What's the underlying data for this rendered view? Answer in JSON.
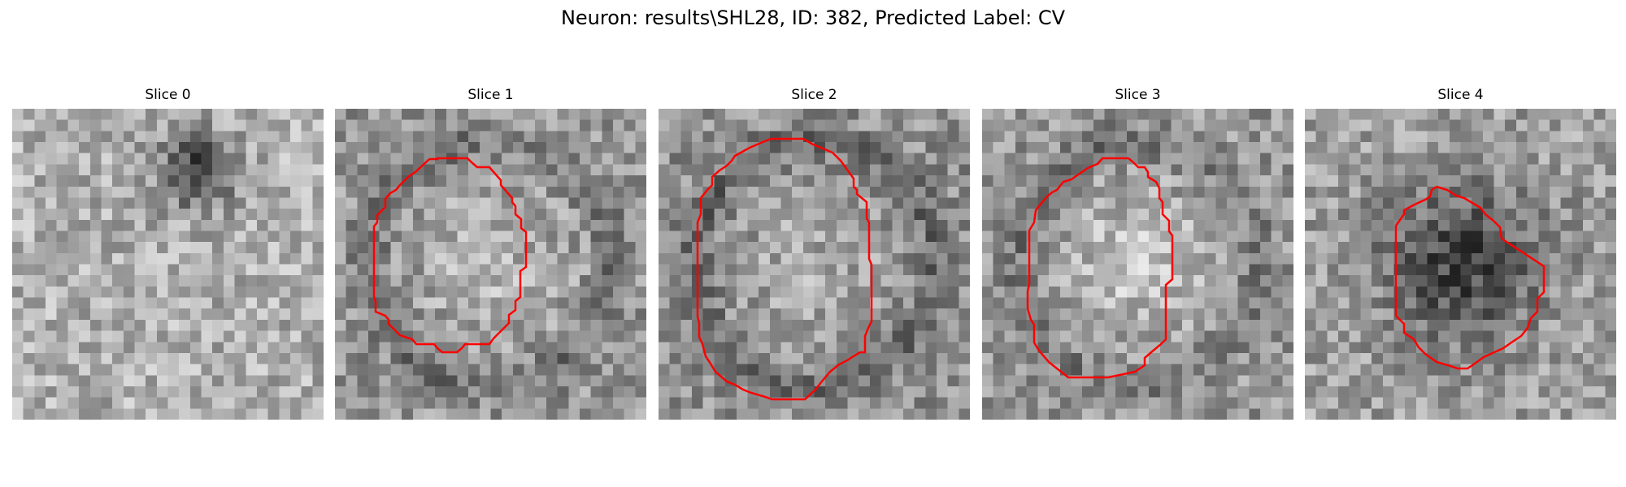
{
  "figure": {
    "title": "Neuron: results\\SHL28, ID: 382, Predicted Label: CV"
  },
  "panels": [
    {
      "title": "Slice 0",
      "has_contour": false,
      "contour_color": "#ff0000"
    },
    {
      "title": "Slice 1",
      "has_contour": true,
      "contour_color": "#ff0000"
    },
    {
      "title": "Slice 2",
      "has_contour": true,
      "contour_color": "#ff0000"
    },
    {
      "title": "Slice 3",
      "has_contour": true,
      "contour_color": "#ff0000"
    },
    {
      "title": "Slice 4",
      "has_contour": true,
      "contour_color": "#ff0000"
    }
  ],
  "colormap": "gray"
}
